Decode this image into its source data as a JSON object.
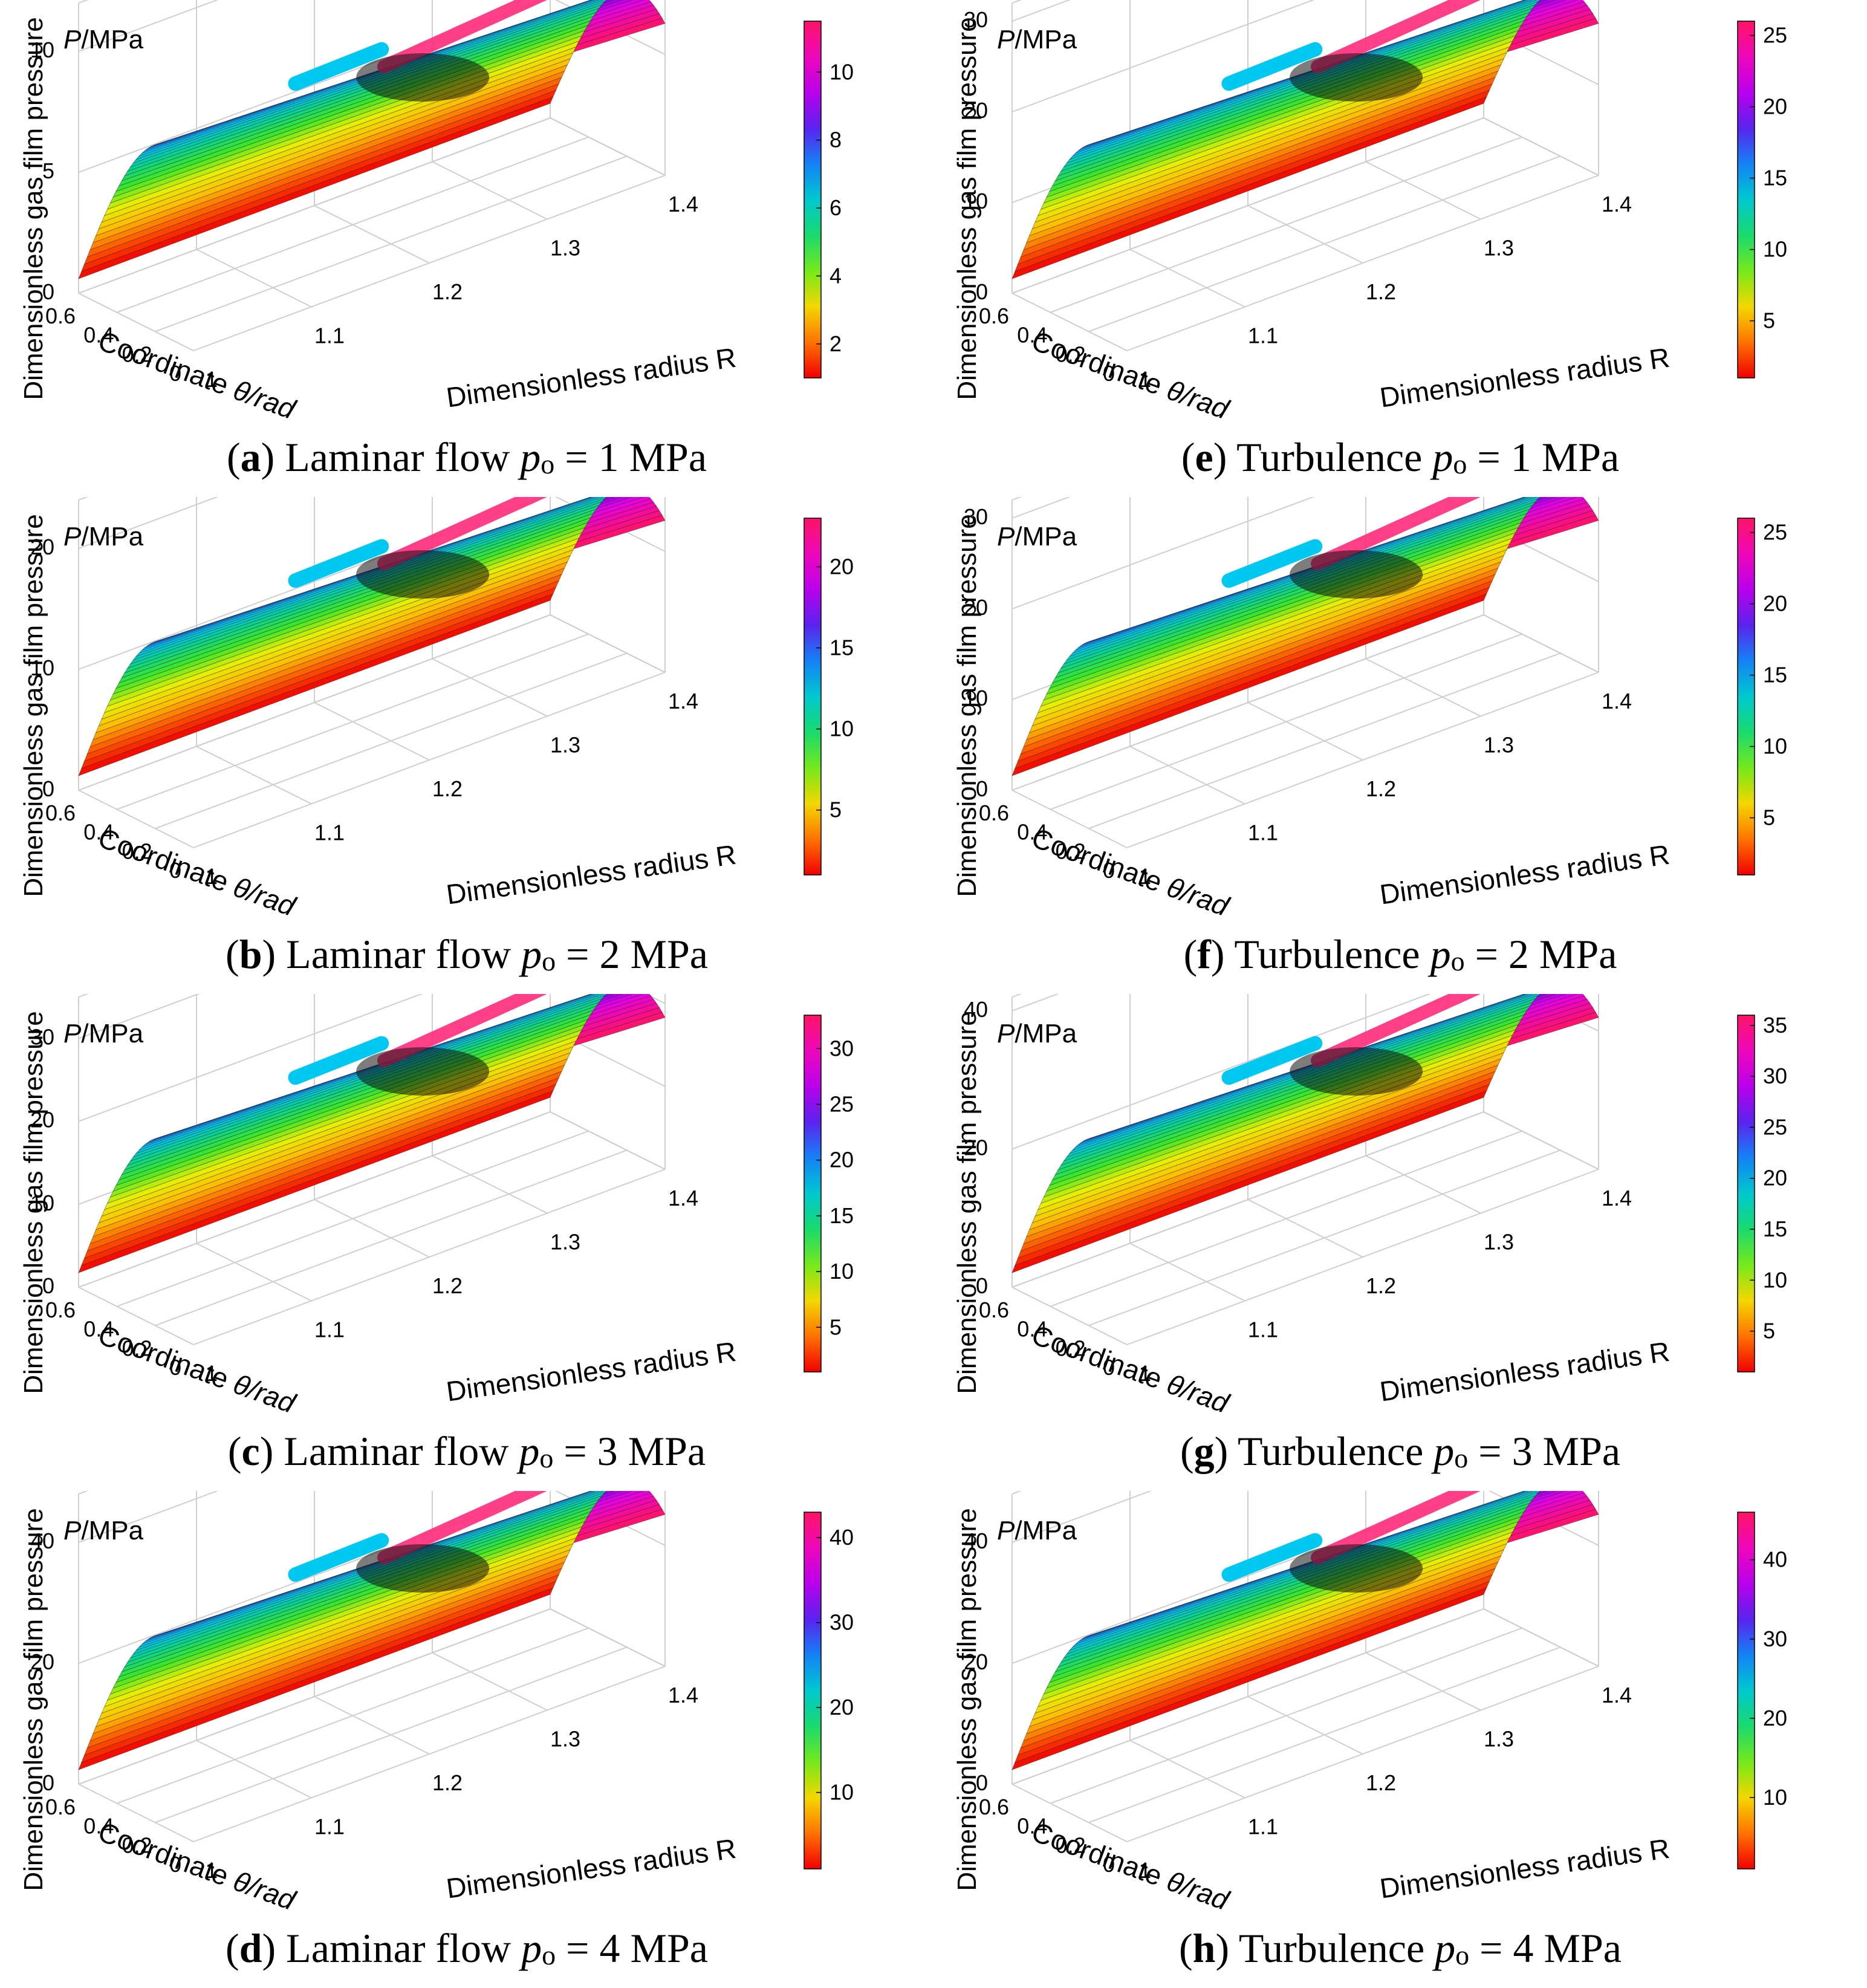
{
  "figure": {
    "panels": [
      {
        "letter": "a",
        "flow": "Laminar flow",
        "po_label": "p",
        "po_sub": "o",
        "condition": "= 1 MPa",
        "chart_data": {
          "type": "surface",
          "zlabel": "P/MPa",
          "zlabel_italic": "P",
          "zlabel_unit": "/MPa",
          "ylabel": "Dimensionless gas film pressure",
          "xlabel": "Coordinate θ/rad",
          "xlabel_pre": "Coordinate ",
          "xlabel_italic": "θ/rad",
          "rlabel": "Dimensionless radius R",
          "theta_ticks": [
            "0.6",
            "0.4",
            "0.2",
            "0"
          ],
          "r_ticks": [
            "1",
            "1.1",
            "1.2",
            "1.3",
            "1.4"
          ],
          "z_ticks": [
            "0",
            "5",
            "10"
          ],
          "z_max": 12,
          "colorbar_ticks": [
            "2",
            "4",
            "6",
            "8",
            "10"
          ],
          "colorbar_range": [
            1,
            11.5
          ]
        }
      },
      {
        "letter": "b",
        "flow": "Laminar flow",
        "po_label": "p",
        "po_sub": "o",
        "condition": "= 2 MPa",
        "chart_data": {
          "type": "surface",
          "zlabel": "P/MPa",
          "zlabel_italic": "P",
          "zlabel_unit": "/MPa",
          "ylabel": "Dimensionless gas film pressure",
          "xlabel": "Coordinate θ/rad",
          "xlabel_pre": "Coordinate ",
          "xlabel_italic": "θ/rad",
          "rlabel": "Dimensionless radius R",
          "theta_ticks": [
            "0.6",
            "0.4",
            "0.2",
            "0"
          ],
          "r_ticks": [
            "1",
            "1.1",
            "1.2",
            "1.3",
            "1.4"
          ],
          "z_ticks": [
            "0",
            "10",
            "20"
          ],
          "z_max": 24,
          "colorbar_ticks": [
            "5",
            "10",
            "15",
            "20"
          ],
          "colorbar_range": [
            1,
            23
          ]
        }
      },
      {
        "letter": "c",
        "flow": "Laminar flow",
        "po_label": "p",
        "po_sub": "o",
        "condition": "= 3 MPa",
        "chart_data": {
          "type": "surface",
          "zlabel": "P/MPa",
          "zlabel_italic": "P",
          "zlabel_unit": "/MPa",
          "ylabel": "Dimensionless gas film pressure",
          "xlabel": "Coordinate θ/rad",
          "xlabel_pre": "Coordinate ",
          "xlabel_italic": "θ/rad",
          "rlabel": "Dimensionless radius R",
          "theta_ticks": [
            "0.6",
            "0.4",
            "0.2",
            "0"
          ],
          "r_ticks": [
            "1",
            "1.1",
            "1.2",
            "1.3",
            "1.4"
          ],
          "z_ticks": [
            "0",
            "10",
            "20",
            "30"
          ],
          "z_max": 35,
          "colorbar_ticks": [
            "5",
            "10",
            "15",
            "20",
            "25",
            "30"
          ],
          "colorbar_range": [
            1,
            33
          ]
        }
      },
      {
        "letter": "d",
        "flow": "Laminar flow",
        "po_label": "p",
        "po_sub": "o",
        "condition": "= 4 MPa",
        "chart_data": {
          "type": "surface",
          "zlabel": "P/MPa",
          "zlabel_italic": "P",
          "zlabel_unit": "/MPa",
          "ylabel": "Dimensionless gas film pressure",
          "xlabel": "Coordinate θ/rad",
          "xlabel_pre": "Coordinate ",
          "xlabel_italic": "θ/rad",
          "rlabel": "Dimensionless radius R",
          "theta_ticks": [
            "0.6",
            "0.4",
            "0.2",
            "0"
          ],
          "r_ticks": [
            "1",
            "1.1",
            "1.2",
            "1.3",
            "1.4"
          ],
          "z_ticks": [
            "0",
            "20",
            "40"
          ],
          "z_max": 48,
          "colorbar_ticks": [
            "10",
            "20",
            "30",
            "40"
          ],
          "colorbar_range": [
            1,
            43
          ]
        }
      },
      {
        "letter": "e",
        "flow": "Turbulence",
        "po_label": "p",
        "po_sub": "o",
        "condition": "= 1 MPa",
        "chart_data": {
          "type": "surface",
          "zlabel": "P/MPa",
          "zlabel_italic": "P",
          "zlabel_unit": "/MPa",
          "ylabel": "Dimensionless gas film pressure",
          "xlabel": "Coordinate θ/rad",
          "xlabel_pre": "Coordinate ",
          "xlabel_italic": "θ/rad",
          "rlabel": "Dimensionless radius R",
          "theta_ticks": [
            "0.6",
            "0.4",
            "0.2",
            "0"
          ],
          "r_ticks": [
            "1",
            "1.1",
            "1.2",
            "1.3",
            "1.4"
          ],
          "z_ticks": [
            "0",
            "10",
            "20",
            "30"
          ],
          "z_max": 32,
          "colorbar_ticks": [
            "5",
            "10",
            "15",
            "20",
            "25"
          ],
          "colorbar_range": [
            1,
            26
          ]
        }
      },
      {
        "letter": "f",
        "flow": "Turbulence",
        "po_label": "p",
        "po_sub": "o",
        "condition": "= 2 MPa",
        "chart_data": {
          "type": "surface",
          "zlabel": "P/MPa",
          "zlabel_italic": "P",
          "zlabel_unit": "/MPa",
          "ylabel": "Dimensionless gas film pressure",
          "xlabel": "Coordinate θ/rad",
          "xlabel_pre": "Coordinate ",
          "xlabel_italic": "θ/rad",
          "rlabel": "Dimensionless radius R",
          "theta_ticks": [
            "0.6",
            "0.4",
            "0.2",
            "0"
          ],
          "r_ticks": [
            "1",
            "1.1",
            "1.2",
            "1.3",
            "1.4"
          ],
          "z_ticks": [
            "0",
            "10",
            "20",
            "30"
          ],
          "z_max": 32,
          "colorbar_ticks": [
            "5",
            "10",
            "15",
            "20",
            "25"
          ],
          "colorbar_range": [
            1,
            26
          ]
        }
      },
      {
        "letter": "g",
        "flow": "Turbulence",
        "po_label": "p",
        "po_sub": "o",
        "condition": "= 3 MPa",
        "chart_data": {
          "type": "surface",
          "zlabel": "P/MPa",
          "zlabel_italic": "P",
          "zlabel_unit": "/MPa",
          "ylabel": "Dimensionless gas film pressure",
          "xlabel": "Coordinate θ/rad",
          "xlabel_pre": "Coordinate ",
          "xlabel_italic": "θ/rad",
          "rlabel": "Dimensionless radius R",
          "theta_ticks": [
            "0.6",
            "0.4",
            "0.2",
            "0"
          ],
          "r_ticks": [
            "1",
            "1.1",
            "1.2",
            "1.3",
            "1.4"
          ],
          "z_ticks": [
            "0",
            "20",
            "40"
          ],
          "z_max": 42,
          "colorbar_ticks": [
            "5",
            "10",
            "15",
            "20",
            "25",
            "30",
            "35"
          ],
          "colorbar_range": [
            1,
            36
          ]
        }
      },
      {
        "letter": "h",
        "flow": "Turbulence",
        "po_label": "p",
        "po_sub": "o",
        "condition": "= 4 MPa",
        "chart_data": {
          "type": "surface",
          "zlabel": "P/MPa",
          "zlabel_italic": "P",
          "zlabel_unit": "/MPa",
          "ylabel": "Dimensionless gas film pressure",
          "xlabel": "Coordinate θ/rad",
          "xlabel_pre": "Coordinate ",
          "xlabel_italic": "θ/rad",
          "rlabel": "Dimensionless radius R",
          "theta_ticks": [
            "0.6",
            "0.4",
            "0.2",
            "0"
          ],
          "r_ticks": [
            "1",
            "1.1",
            "1.2",
            "1.3",
            "1.4"
          ],
          "z_ticks": [
            "0",
            "20",
            "40"
          ],
          "z_max": 48,
          "colorbar_ticks": [
            "10",
            "20",
            "30",
            "40"
          ],
          "colorbar_range": [
            1,
            46
          ]
        }
      }
    ]
  }
}
